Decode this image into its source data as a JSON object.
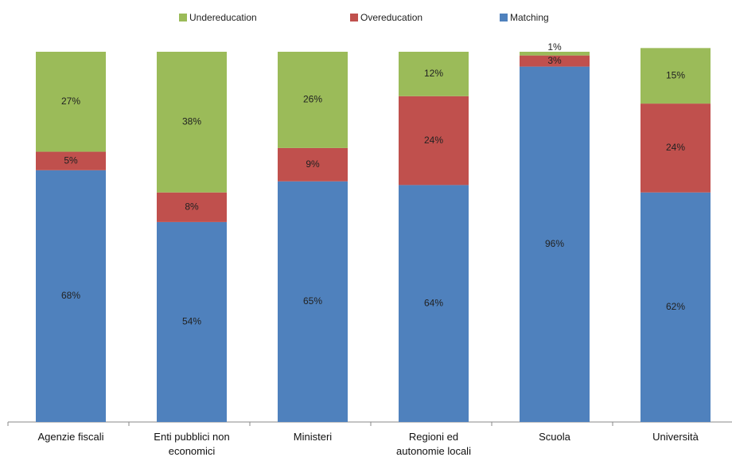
{
  "chart_data": {
    "type": "stacked_bar",
    "categories": [
      "Agenzie fiscali",
      "Enti pubblici non economici",
      "Ministeri",
      "Regioni ed autonomie locali",
      "Scuola",
      "Università"
    ],
    "series": [
      {
        "name": "Undereducation",
        "color": "#9bbb59",
        "values": [
          27,
          38,
          26,
          12,
          1,
          15
        ],
        "value_labels": [
          "27%",
          "38%",
          "26%",
          "12%",
          "1%",
          "15%"
        ]
      },
      {
        "name": "Overeducation",
        "color": "#c0504d",
        "values": [
          5,
          8,
          9,
          24,
          3,
          24
        ],
        "value_labels": [
          "5%",
          "8%",
          "9%",
          "24%",
          "3%",
          "24%"
        ]
      },
      {
        "name": "Matching",
        "color": "#4f81bd",
        "values": [
          68,
          54,
          65,
          64,
          96,
          62
        ],
        "value_labels": [
          "68%",
          "54%",
          "65%",
          "64%",
          "96%",
          "62%"
        ]
      }
    ],
    "ylim": [
      0,
      100
    ]
  }
}
